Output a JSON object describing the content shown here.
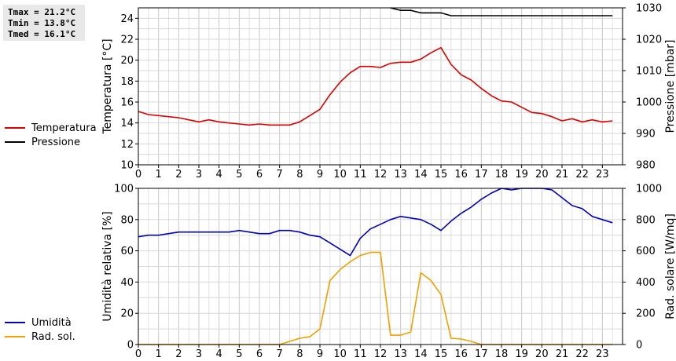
{
  "stats": [
    "Tmax = 21.2°C",
    "Tmin = 13.8°C",
    "Tmed = 16.1°C"
  ],
  "legend_top": [
    {
      "label": "Temperatura",
      "color": "#dd0000"
    },
    {
      "label": "Pressione",
      "color": "#000000"
    }
  ],
  "legend_bottom": [
    {
      "label": "Umidità",
      "color": "#0000bb"
    },
    {
      "label": "Rad. sol.",
      "color": "#f0a000"
    }
  ],
  "chart_data": [
    {
      "type": "line",
      "xlabel": "",
      "ylabel": "Temperatura [°C]",
      "y2label": "Pressione [mbar]",
      "xlim": [
        0,
        24
      ],
      "ylim": [
        10,
        25
      ],
      "y2lim": [
        980,
        1030
      ],
      "x_ticks": [
        "0",
        "1",
        "2",
        "3",
        "4",
        "5",
        "6",
        "7",
        "8",
        "9",
        "10",
        "11",
        "12",
        "13",
        "14",
        "15",
        "16",
        "17",
        "18",
        "19",
        "20",
        "21",
        "22",
        "23"
      ],
      "y_ticks": [
        "10",
        "12",
        "14",
        "16",
        "18",
        "20",
        "22",
        "24"
      ],
      "y2_ticks": [
        "980",
        "990",
        "1000",
        "1010",
        "1020",
        "1030"
      ],
      "grid": true,
      "series": [
        {
          "name": "Temperatura",
          "axis": "left",
          "color": "#dd0000",
          "x": [
            0,
            0.5,
            1,
            1.5,
            2,
            2.5,
            3,
            3.5,
            4,
            4.5,
            5,
            5.5,
            6,
            6.5,
            7,
            7.5,
            8,
            8.5,
            9,
            9.5,
            10,
            10.5,
            11,
            11.5,
            12,
            12.5,
            13,
            13.5,
            14,
            14.5,
            15,
            15.5,
            16,
            16.5,
            17,
            17.5,
            18,
            18.5,
            19,
            19.5,
            20,
            20.5,
            21,
            21.5,
            22,
            22.5,
            23,
            23.5
          ],
          "values": [
            15.1,
            14.8,
            14.7,
            14.6,
            14.5,
            14.3,
            14.1,
            14.3,
            14.1,
            14.0,
            13.9,
            13.8,
            13.9,
            13.8,
            13.8,
            13.8,
            14.1,
            14.7,
            15.3,
            16.7,
            17.9,
            18.8,
            19.4,
            19.4,
            19.3,
            19.7,
            19.8,
            19.8,
            20.1,
            20.7,
            21.2,
            19.6,
            18.6,
            18.1,
            17.3,
            16.6,
            16.1,
            16.0,
            15.5,
            15.0,
            14.9,
            14.6,
            14.2,
            14.4,
            14.1,
            14.3,
            14.1,
            14.2
          ]
        },
        {
          "name": "Pressione",
          "axis": "right",
          "color": "#000000",
          "x": [
            12.5,
            13,
            13.5,
            14,
            14.5,
            15,
            15.5,
            16,
            16.5,
            17,
            17.5,
            18,
            18.5,
            19,
            19.5,
            20,
            20.5,
            21,
            21.5,
            22,
            22.5,
            23,
            23.5
          ],
          "values": [
            1030.0,
            1029.2,
            1029.2,
            1028.4,
            1028.4,
            1028.4,
            1027.5,
            1027.5,
            1027.5,
            1027.5,
            1027.5,
            1027.5,
            1027.5,
            1027.5,
            1027.5,
            1027.5,
            1027.5,
            1027.5,
            1027.5,
            1027.5,
            1027.5,
            1027.5,
            1027.5
          ]
        }
      ]
    },
    {
      "type": "line",
      "xlabel": "",
      "ylabel": "Umidità relativa [%]",
      "y2label": "Rad. solare [W/mq]",
      "xlim": [
        0,
        24
      ],
      "ylim": [
        0,
        100
      ],
      "y2lim": [
        0,
        1000
      ],
      "x_ticks": [
        "0",
        "1",
        "2",
        "3",
        "4",
        "5",
        "6",
        "7",
        "8",
        "9",
        "10",
        "11",
        "12",
        "13",
        "14",
        "15",
        "16",
        "17",
        "18",
        "19",
        "20",
        "21",
        "22",
        "23"
      ],
      "y_ticks": [
        "0",
        "20",
        "40",
        "60",
        "80",
        "100"
      ],
      "y2_ticks": [
        "0",
        "200",
        "400",
        "600",
        "800",
        "1000"
      ],
      "grid": true,
      "series": [
        {
          "name": "Umidità",
          "axis": "left",
          "color": "#0000bb",
          "x": [
            0,
            0.5,
            1,
            1.5,
            2,
            2.5,
            3,
            3.5,
            4,
            4.5,
            5,
            5.5,
            6,
            6.5,
            7,
            7.5,
            8,
            8.5,
            9,
            9.5,
            10,
            10.5,
            11,
            11.5,
            12,
            12.5,
            13,
            13.5,
            14,
            14.5,
            15,
            15.5,
            16,
            16.5,
            17,
            17.5,
            18,
            18.5,
            19,
            19.5,
            20,
            20.5,
            21,
            21.5,
            22,
            22.5,
            23,
            23.5
          ],
          "values": [
            69,
            70,
            70,
            71,
            72,
            72,
            72,
            72,
            72,
            72,
            73,
            72,
            71,
            71,
            73,
            73,
            72,
            70,
            69,
            65,
            61,
            57,
            68,
            74,
            77,
            80,
            82,
            81,
            80,
            77,
            73,
            79,
            84,
            88,
            93,
            97,
            100,
            99,
            100,
            100,
            100,
            99,
            94,
            89,
            87,
            82,
            80,
            78
          ]
        },
        {
          "name": "Rad. sol.",
          "axis": "right",
          "color": "#f0a000",
          "x": [
            0,
            0.5,
            1,
            1.5,
            2,
            2.5,
            3,
            3.5,
            4,
            4.5,
            5,
            5.5,
            6,
            6.5,
            7,
            7.5,
            8,
            8.5,
            9,
            9.5,
            10,
            10.5,
            11,
            11.5,
            12,
            12.5,
            13,
            13.5,
            14,
            14.5,
            15,
            15.5,
            16,
            16.5,
            17,
            17.5,
            18,
            18.5,
            19,
            19.5,
            20,
            20.5,
            21,
            21.5,
            22,
            22.5,
            23,
            23.5
          ],
          "values": [
            0,
            0,
            0,
            0,
            0,
            0,
            0,
            0,
            0,
            0,
            0,
            0,
            0,
            0,
            0,
            20,
            40,
            50,
            100,
            410,
            480,
            530,
            570,
            590,
            590,
            60,
            60,
            80,
            460,
            410,
            320,
            40,
            35,
            20,
            0,
            0,
            0,
            0,
            0,
            0,
            0,
            0,
            0,
            0,
            0,
            0,
            0,
            0
          ]
        }
      ]
    }
  ]
}
